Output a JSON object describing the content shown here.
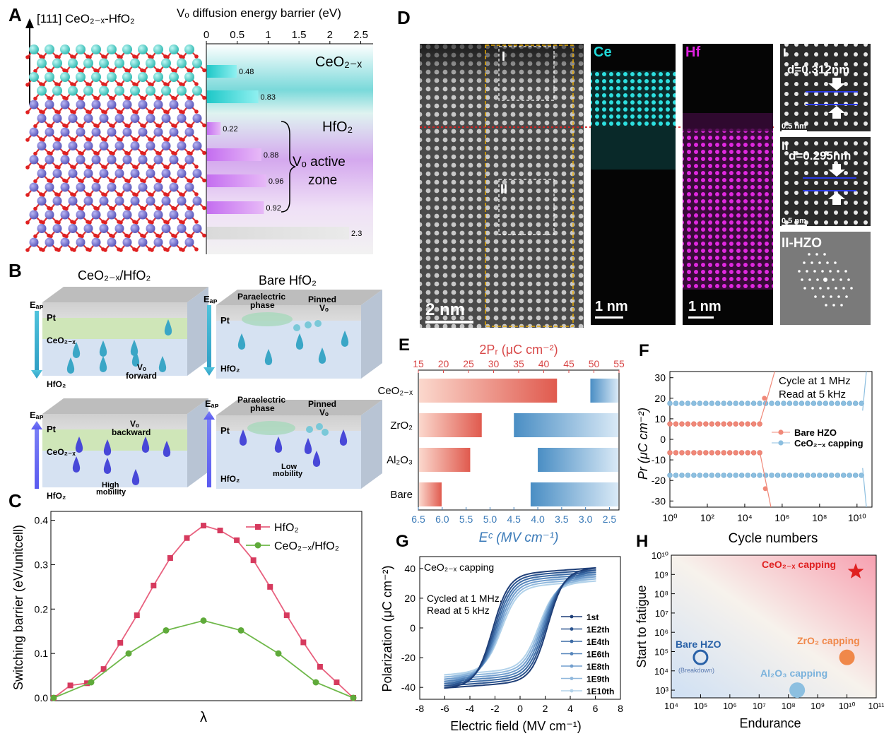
{
  "panel_labels": {
    "A": "A",
    "B": "B",
    "C": "C",
    "D": "D",
    "E": "E",
    "F": "F",
    "G": "G",
    "H": "H"
  },
  "panelA": {
    "crystal_label": "[111] CeO₂₋ₓ-HfO₂",
    "axis_title": "Vₒ diffusion energy barrier (eV)",
    "region_ceo2": "CeO₂₋ₓ",
    "region_hfo2": "HfO₂",
    "active_zone_line1": "Vₒ active",
    "active_zone_line2": "zone"
  },
  "panelB": {
    "title_left": "CeO₂₋ₓ/HfO₂",
    "title_right": "Bare HfO₂",
    "e_ap": "Eₐₚ",
    "pt": "Pt",
    "ceo2": "CeO₂₋ₓ",
    "hfo2": "HfO₂",
    "vo_forward_1": "Vₒ",
    "vo_forward_2": "forward",
    "vo_backward_1": "Vₒ",
    "vo_backward_2": "backward",
    "paraelectric_1": "Paraelectric",
    "paraelectric_2": "phase",
    "pinned_1": "Pinned",
    "pinned_2": "Vₒ",
    "high_mobility_1": "High",
    "high_mobility_2": "mobility",
    "low_mobility_1": "Low",
    "low_mobility_2": "mobility"
  },
  "panelD": {
    "box_I": "I",
    "box_II": "II",
    "scale_main": "2 nm",
    "ce_label": "Ce",
    "hf_label": "Hf",
    "scale_ce": "1 nm",
    "scale_hf": "1 nm",
    "inset_I": "I",
    "inset_I_d": "d=0.312nm",
    "inset_II": "II",
    "inset_II_d": "d=0.295nm",
    "inset_scale": "0.5 nm",
    "fft_label": "II-HZO",
    "colors": {
      "ce": "#20d8d8",
      "hf": "#e020e0"
    }
  },
  "chart_data": [
    {
      "panel": "A",
      "type": "bar",
      "orientation": "horizontal",
      "xlabel": "Vₒ diffusion energy barrier (eV)",
      "xlim": [
        0,
        2.7
      ],
      "xticks": [
        "0",
        "0.5",
        "1",
        "1.5",
        "2",
        "2.5"
      ],
      "values": [
        0.48,
        0.83,
        0.22,
        0.88,
        0.96,
        0.92,
        2.3
      ],
      "value_labels": [
        "0.48",
        "0.83",
        "0.22",
        "0.88",
        "0.96",
        "0.92",
        "2.3"
      ]
    },
    {
      "panel": "C",
      "type": "line",
      "xlabel": "λ",
      "ylabel": "Switching barrier (eV/unitcell)",
      "ylim": [
        0,
        0.42
      ],
      "yticks": [
        "0.0",
        "0.1",
        "0.2",
        "0.3",
        "0.4"
      ],
      "series": [
        {
          "name": "HfO₂",
          "color": "#e8607e",
          "values": [
            0.0,
            0.028,
            0.033,
            0.065,
            0.124,
            0.186,
            0.253,
            0.315,
            0.36,
            0.388,
            0.377,
            0.355,
            0.31,
            0.25,
            0.186,
            0.125,
            0.07,
            0.035,
            0.0
          ]
        },
        {
          "name": "CeO₂₋ₓ/HfO₂",
          "color": "#6fb84a",
          "values": [
            0.0,
            0.035,
            0.1,
            0.152,
            0.174,
            0.152,
            0.1,
            0.035,
            0.0
          ],
          "x_index": [
            0,
            3,
            6,
            9,
            12,
            15,
            18,
            21,
            24
          ]
        }
      ]
    },
    {
      "panel": "E",
      "type": "bar",
      "orientation": "horizontal",
      "categories": [
        "CeO₂₋ₓ",
        "ZrO₂",
        "Al₂O₃",
        "Bare"
      ],
      "top_axis": {
        "label": "2Pᵣ (μC cm⁻²)",
        "range": [
          15,
          55
        ],
        "ticks": [
          "15",
          "20",
          "25",
          "30",
          "35",
          "40",
          "45",
          "50",
          "55"
        ]
      },
      "bottom_axis": {
        "label": "Eᶜ (MV cm⁻¹)",
        "range": [
          6.5,
          2.3
        ],
        "ticks": [
          "6.5",
          "6.0",
          "5.5",
          "5.0",
          "4.5",
          "4.0",
          "3.5",
          "3.0",
          "2.5"
        ]
      },
      "pr_2": [
        42.5,
        27.5,
        25.2,
        19.5
      ],
      "ec": [
        2.9,
        4.5,
        4.0,
        4.15
      ]
    },
    {
      "panel": "F",
      "type": "scatter",
      "xlabel": "Cycle numbers",
      "ylabel": "Pr (μC cm⁻²)",
      "ylim": [
        -33,
        33
      ],
      "yticks": [
        "30",
        "20",
        "10",
        "0",
        "-10",
        "-20",
        "-30"
      ],
      "xticks": [
        "10⁰",
        "10²",
        "10⁴",
        "10⁶",
        "10⁸",
        "10¹⁰"
      ],
      "annotation_1": "Cycle at 1 MHz",
      "annotation_2": "Read  at 5 kHz",
      "series": [
        {
          "name": "Bare HZO",
          "color": "#f08878",
          "pos": 7.5,
          "neg": -6.5,
          "end_log": 5.2
        },
        {
          "name": "CeO₂₋ₓ capping",
          "color": "#8cbfe0",
          "pos": 17.5,
          "neg": -17.5,
          "end_log": 10.3
        }
      ]
    },
    {
      "panel": "G",
      "type": "line",
      "title": "CeO₂₋ₓ capping",
      "annotation_1": "Cycled at 1 MHz,",
      "annotation_2": "Read at 5 kHz",
      "xlabel": "Electric field (MV cm⁻¹)",
      "ylabel": "Polarization (μC cm⁻²)",
      "xlim": [
        -8,
        8
      ],
      "ylim": [
        -48,
        48
      ],
      "xticks": [
        "-8",
        "-6",
        "-4",
        "-2",
        "0",
        "2",
        "4",
        "6",
        "8"
      ],
      "yticks": [
        "40",
        "20",
        "0",
        "-20",
        "-40"
      ],
      "series": [
        {
          "name": "1st",
          "color": "#1f3f78"
        },
        {
          "name": "1E2th",
          "color": "#2c5590"
        },
        {
          "name": "1E4th",
          "color": "#3d6ca6"
        },
        {
          "name": "1E6th",
          "color": "#5585bb"
        },
        {
          "name": "1E8th",
          "color": "#719ece"
        },
        {
          "name": "1E9th",
          "color": "#90b8dd"
        },
        {
          "name": "1E10th",
          "color": "#b2d2ea"
        }
      ]
    },
    {
      "panel": "H",
      "type": "scatter",
      "xlabel": "Endurance",
      "ylabel": "Start to fatigue",
      "xticks": [
        "10⁴",
        "10⁵",
        "10⁶",
        "10⁷",
        "10⁸",
        "10⁹",
        "10¹⁰",
        "10¹¹"
      ],
      "yticks": [
        "10¹⁰",
        "10⁹",
        "10⁸",
        "10⁷",
        "10⁶",
        "10⁵",
        "10⁴",
        "10³"
      ],
      "points": [
        {
          "name": "CeO₂₋ₓ capping",
          "x_log": 10.3,
          "y_log": 9.15,
          "color": "#e02020"
        },
        {
          "name": "ZrO₂ capping",
          "x_log": 10.0,
          "y_log": 4.7,
          "color": "#f0884a"
        },
        {
          "name": "Al₂O₃ capping",
          "x_log": 8.3,
          "y_log": 3.0,
          "color": "#8cbfe0"
        },
        {
          "name": "Bare HZO",
          "x_log": 5.0,
          "y_log": 4.7,
          "color": "#2a62a8",
          "sublabel": "(Breakdown)"
        }
      ]
    }
  ]
}
